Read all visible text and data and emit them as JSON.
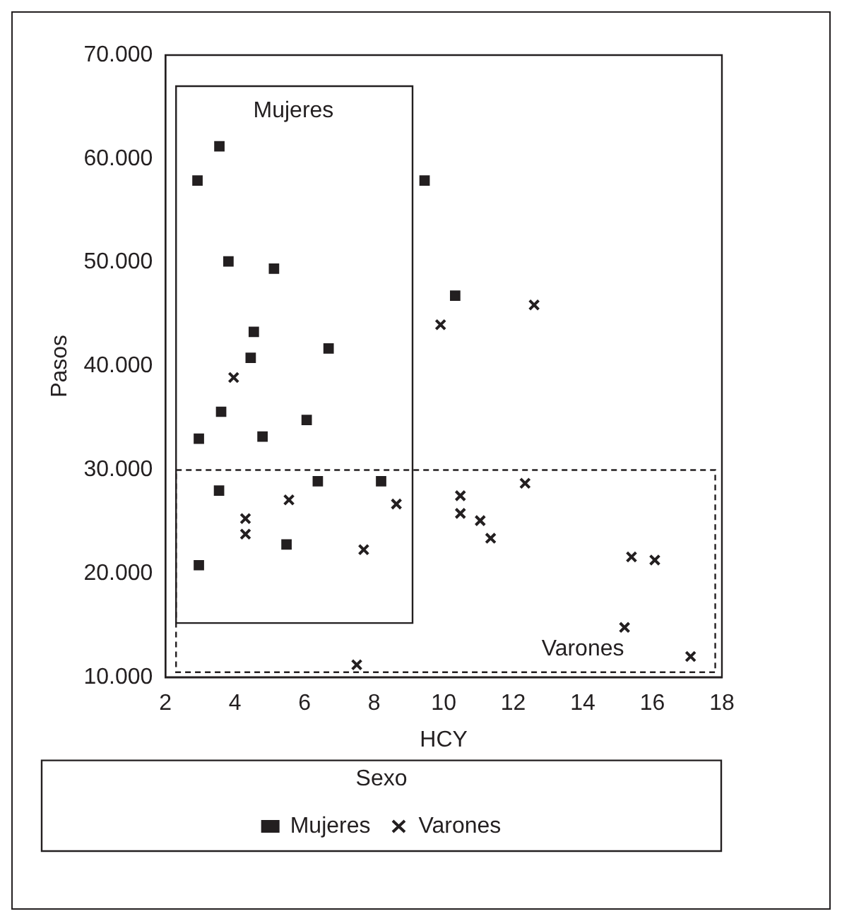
{
  "chart_data": {
    "type": "scatter",
    "xlabel": "HCY",
    "ylabel": "Pasos",
    "legend_title": "Sexo",
    "legend": "bottom",
    "grid": false,
    "xlim": [
      2,
      18
    ],
    "xticks": [
      2,
      4,
      6,
      8,
      10,
      12,
      14,
      16,
      18
    ],
    "ylim": [
      10000,
      70000
    ],
    "yticks": [
      {
        "value": 10000,
        "label": "10.000"
      },
      {
        "value": 20000,
        "label": "20.000"
      },
      {
        "value": 30000,
        "label": "30.000"
      },
      {
        "value": 40000,
        "label": "40.000"
      },
      {
        "value": 50000,
        "label": "50.000"
      },
      {
        "value": 60000,
        "label": "60.000"
      },
      {
        "value": 70000,
        "label": "70.000"
      }
    ],
    "annotations": [
      "Mujeres",
      "Varones"
    ],
    "series": [
      {
        "name": "Mujeres",
        "color": "#231f20",
        "marker": "square",
        "x": [
          2.92,
          3.55,
          3.81,
          5.12,
          4.54,
          4.45,
          6.69,
          3.6,
          2.96,
          4.79,
          6.06,
          3.54,
          6.38,
          8.2,
          5.48,
          2.96,
          9.45,
          10.33
        ],
        "values": [
          57900,
          61200,
          50100,
          49400,
          43300,
          40800,
          41700,
          35600,
          33000,
          33200,
          34800,
          28000,
          28900,
          28900,
          22800,
          20800,
          57900,
          46800
        ]
      },
      {
        "name": "Varones",
        "color": "#231f20",
        "marker": "cross",
        "x": [
          3.96,
          9.91,
          12.6,
          5.55,
          8.64,
          4.3,
          4.3,
          7.7,
          10.48,
          10.48,
          11.05,
          11.35,
          12.34,
          15.4,
          16.07,
          7.5,
          15.2,
          17.1
        ],
        "values": [
          38900,
          44000,
          45900,
          27100,
          26700,
          25300,
          23800,
          22300,
          27500,
          25800,
          25100,
          23400,
          28700,
          21600,
          21300,
          11200,
          14800,
          12000
        ]
      }
    ]
  }
}
